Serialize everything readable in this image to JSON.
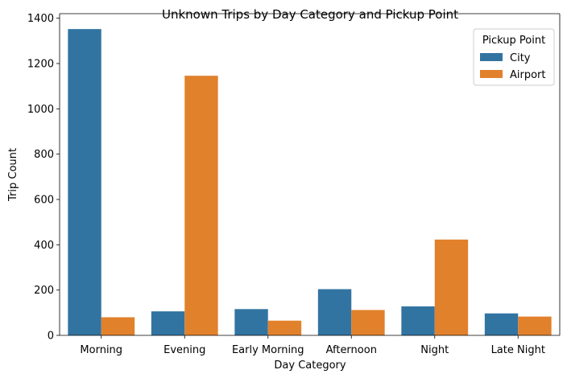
{
  "chart_data": {
    "type": "bar",
    "title": "Unknown Trips by Day Category and Pickup Point",
    "xlabel": "Day Category",
    "ylabel": "Trip Count",
    "categories": [
      "Morning",
      "Evening",
      "Early Morning",
      "Afternoon",
      "Night",
      "Late Night"
    ],
    "series": [
      {
        "name": "City",
        "color": "#3274a1",
        "values": [
          1352,
          106,
          116,
          204,
          128,
          97
        ]
      },
      {
        "name": "Airport",
        "color": "#e1812c",
        "values": [
          80,
          1146,
          65,
          112,
          423,
          83
        ]
      }
    ],
    "ylim": [
      0,
      1420
    ],
    "yticks": [
      0,
      200,
      400,
      600,
      800,
      1000,
      1200,
      1400
    ],
    "legend": {
      "title": "Pickup Point",
      "placement": "top-right"
    },
    "grid": false
  }
}
